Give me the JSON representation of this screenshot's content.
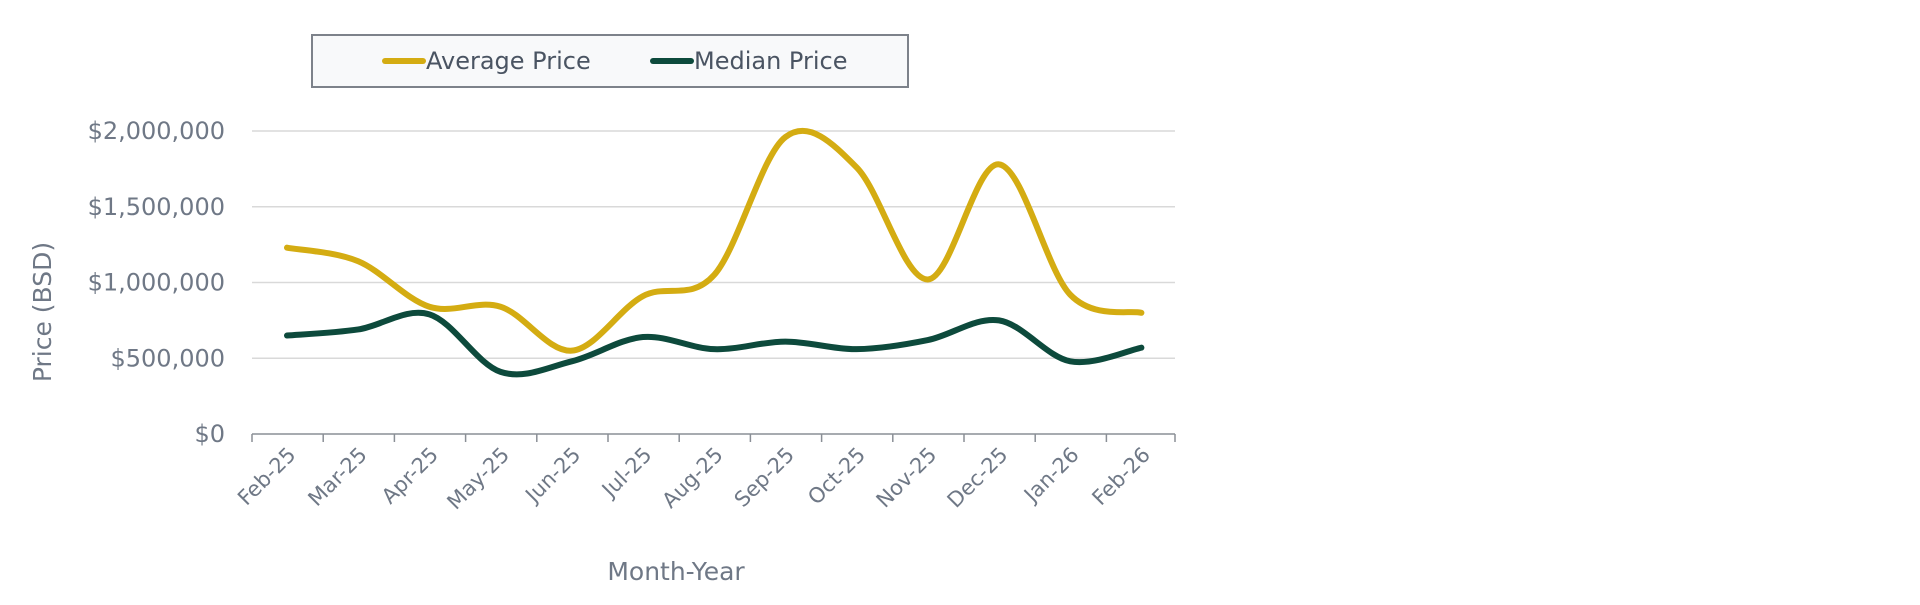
{
  "chart_data": {
    "type": "line",
    "title": "",
    "xlabel": "Month-Year",
    "ylabel": "Price (BSD)",
    "categories": [
      "Feb-25",
      "Mar-25",
      "Apr-25",
      "May-25",
      "Jun-25",
      "Jul-25",
      "Aug-25",
      "Sep-25",
      "Oct-25",
      "Nov-25",
      "Dec-25",
      "Jan-26",
      "Feb-26"
    ],
    "ylim": [
      0,
      2000000
    ],
    "yticks": [
      0,
      500000,
      1000000,
      1500000,
      2000000
    ],
    "ytick_labels": [
      "$0",
      "$500,000",
      "$1,000,000",
      "$1,500,000",
      "$2,000,000"
    ],
    "grid": true,
    "legend_position": "top",
    "series": [
      {
        "name": "Average Price",
        "color": "#d4ac12",
        "values": [
          1230000,
          1140000,
          840000,
          840000,
          550000,
          910000,
          1050000,
          1960000,
          1760000,
          1020000,
          1780000,
          920000,
          800000
        ]
      },
      {
        "name": "Median Price",
        "color": "#0d4a3c",
        "values": [
          650000,
          690000,
          790000,
          410000,
          480000,
          640000,
          560000,
          610000,
          560000,
          620000,
          750000,
          480000,
          570000
        ]
      }
    ]
  }
}
